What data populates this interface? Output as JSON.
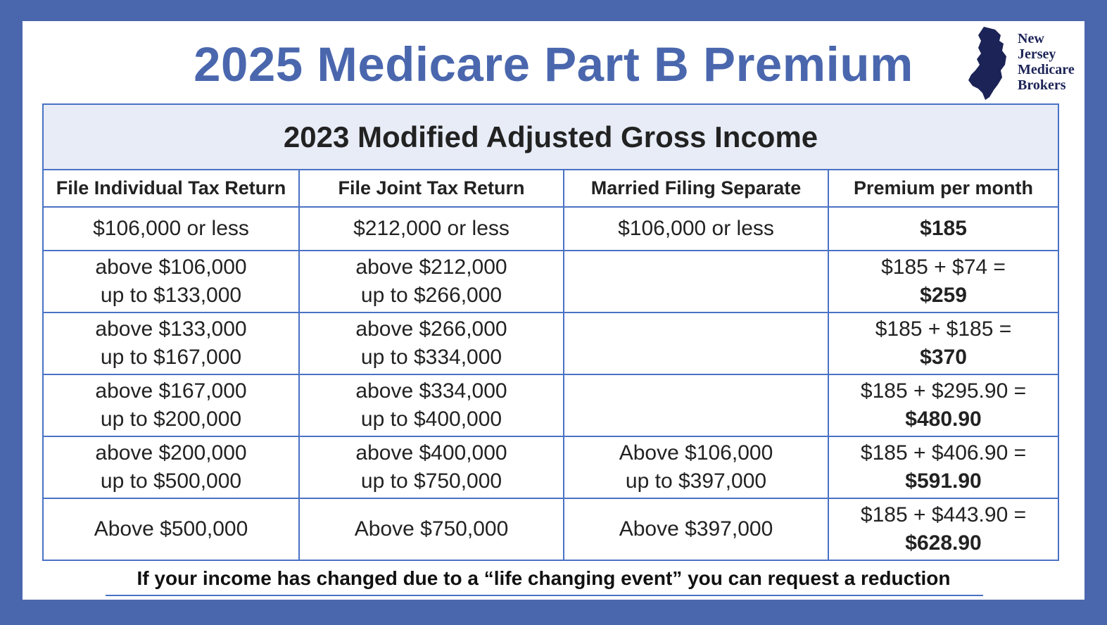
{
  "title": "2025 Medicare Part B Premium",
  "logo": {
    "lines": [
      "New",
      "Jersey",
      "Medicare",
      "Brokers"
    ]
  },
  "table": {
    "super_header": "2023 Modified Adjusted Gross Income",
    "columns": [
      "File Individual Tax Return",
      "File Joint Tax Return",
      "Married Filing Separate",
      "Premium per month"
    ],
    "rows": [
      {
        "individual": [
          "$106,000 or less"
        ],
        "joint": [
          "$212,000 or less"
        ],
        "separate": [
          "$106,000 or less"
        ],
        "premium_formula": "",
        "premium_total": "$185"
      },
      {
        "individual": [
          "above $106,000",
          "up to $133,000"
        ],
        "joint": [
          "above $212,000",
          "up to $266,000"
        ],
        "separate": [
          "",
          ""
        ],
        "premium_formula": "$185 + $74 =",
        "premium_total": "$259"
      },
      {
        "individual": [
          "above $133,000",
          "up to $167,000"
        ],
        "joint": [
          "above $266,000",
          "up to $334,000"
        ],
        "separate": [
          "",
          ""
        ],
        "premium_formula": "$185 + $185 =",
        "premium_total": "$370"
      },
      {
        "individual": [
          "above $167,000",
          "up to $200,000"
        ],
        "joint": [
          "above $334,000",
          "up to $400,000"
        ],
        "separate": [
          "",
          ""
        ],
        "premium_formula": "$185 + $295.90 =",
        "premium_total": "$480.90"
      },
      {
        "individual": [
          "above $200,000",
          "up to $500,000"
        ],
        "joint": [
          "above $400,000",
          "up to $750,000"
        ],
        "separate": [
          "Above $106,000",
          "up to $397,000"
        ],
        "premium_formula": "$185 + $406.90 =",
        "premium_total": "$591.90"
      },
      {
        "individual": [
          "Above $500,000"
        ],
        "joint": [
          "Above $750,000"
        ],
        "separate": [
          "Above $397,000"
        ],
        "premium_formula": "$185 + $443.90 =",
        "premium_total": "$628.90"
      }
    ]
  },
  "footer_note": "If your income has changed due to a “life changing event” you can request a reduction",
  "colors": {
    "frame": "#4a67ae",
    "title": "#4a67ae",
    "table_border": "#4a72c4",
    "header_fill": "#e8ecf7",
    "logo": "#1c2356"
  }
}
